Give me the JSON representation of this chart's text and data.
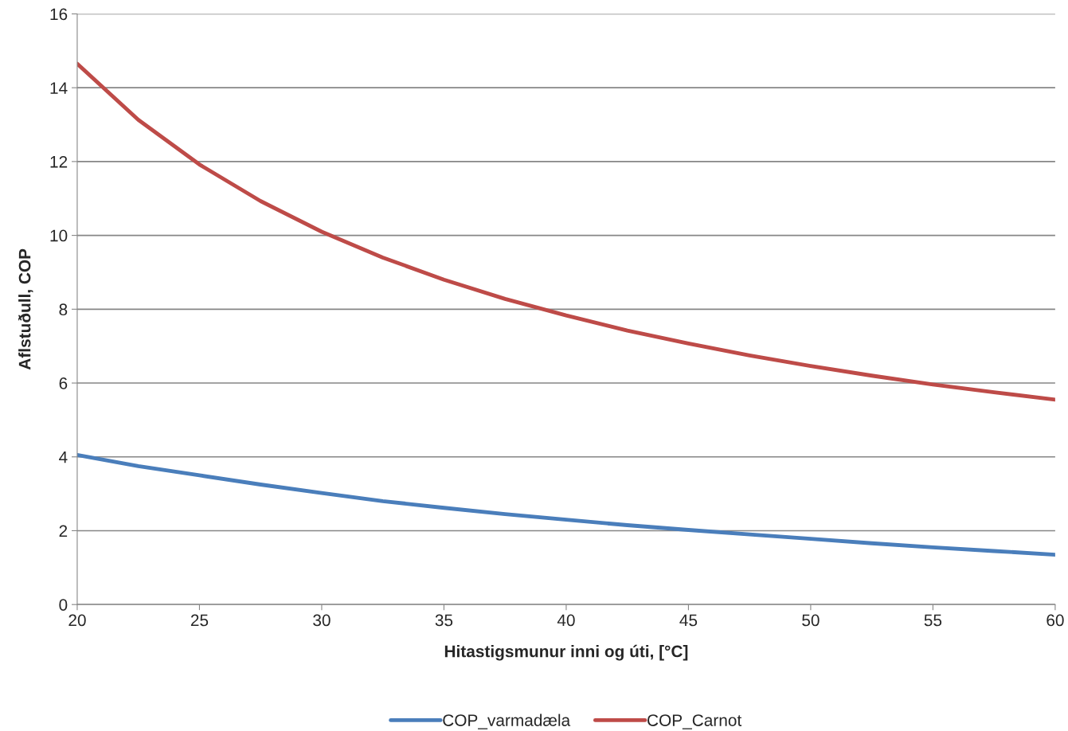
{
  "chart_data": {
    "type": "line",
    "xlabel": "Hitastigsmunur inni og úti, [°C]",
    "ylabel": "Aflstuðull, COP",
    "x": [
      20,
      22.5,
      25,
      27.5,
      30,
      32.5,
      35,
      37.5,
      40,
      42.5,
      45,
      47.5,
      50,
      52.5,
      55,
      57.5,
      60
    ],
    "series": [
      {
        "name": "COP_varmadæla",
        "color": "#4a7ebb",
        "values": [
          4.05,
          3.75,
          3.5,
          3.25,
          3.02,
          2.8,
          2.62,
          2.45,
          2.3,
          2.15,
          2.02,
          1.9,
          1.78,
          1.66,
          1.55,
          1.45,
          1.35
        ]
      },
      {
        "name": "COP_Carnot",
        "color": "#be4b48",
        "values": [
          14.65,
          13.13,
          11.92,
          10.93,
          10.1,
          9.4,
          8.8,
          8.28,
          7.83,
          7.42,
          7.07,
          6.75,
          6.46,
          6.2,
          5.96,
          5.75,
          5.55
        ]
      }
    ],
    "xlim": [
      20,
      60
    ],
    "xticks": [
      20,
      25,
      30,
      35,
      40,
      45,
      50,
      55,
      60
    ],
    "ylim": [
      0,
      16
    ],
    "yticks": [
      0,
      2,
      4,
      6,
      8,
      10,
      12,
      14,
      16
    ],
    "grid": "y",
    "legend": "bottom",
    "marker": "none",
    "line_style": "solid"
  }
}
